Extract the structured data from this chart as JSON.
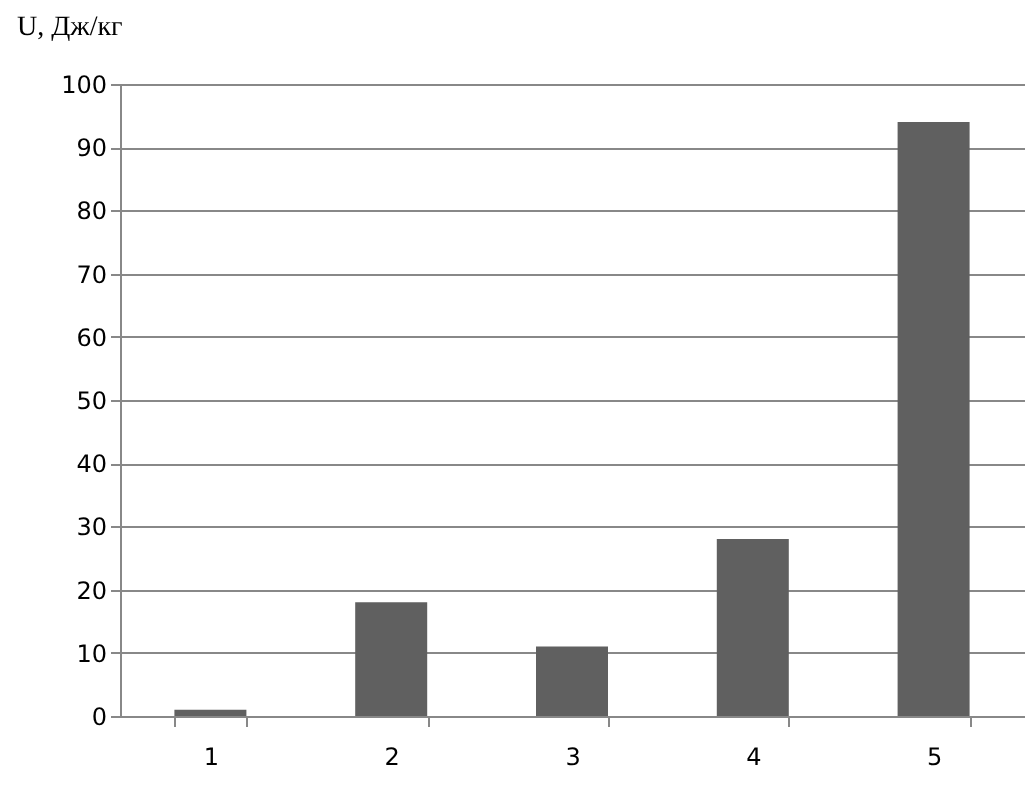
{
  "chart_data": {
    "type": "bar",
    "ylabel": "U, Дж/кг",
    "categories": [
      "1",
      "2",
      "3",
      "4",
      "5"
    ],
    "values": [
      1,
      18,
      11,
      28,
      94
    ],
    "color": "#606060",
    "ylim": [
      0,
      100
    ],
    "yticks": [
      0,
      10,
      20,
      30,
      40,
      50,
      60,
      70,
      80,
      90,
      100
    ],
    "grid": "y"
  }
}
